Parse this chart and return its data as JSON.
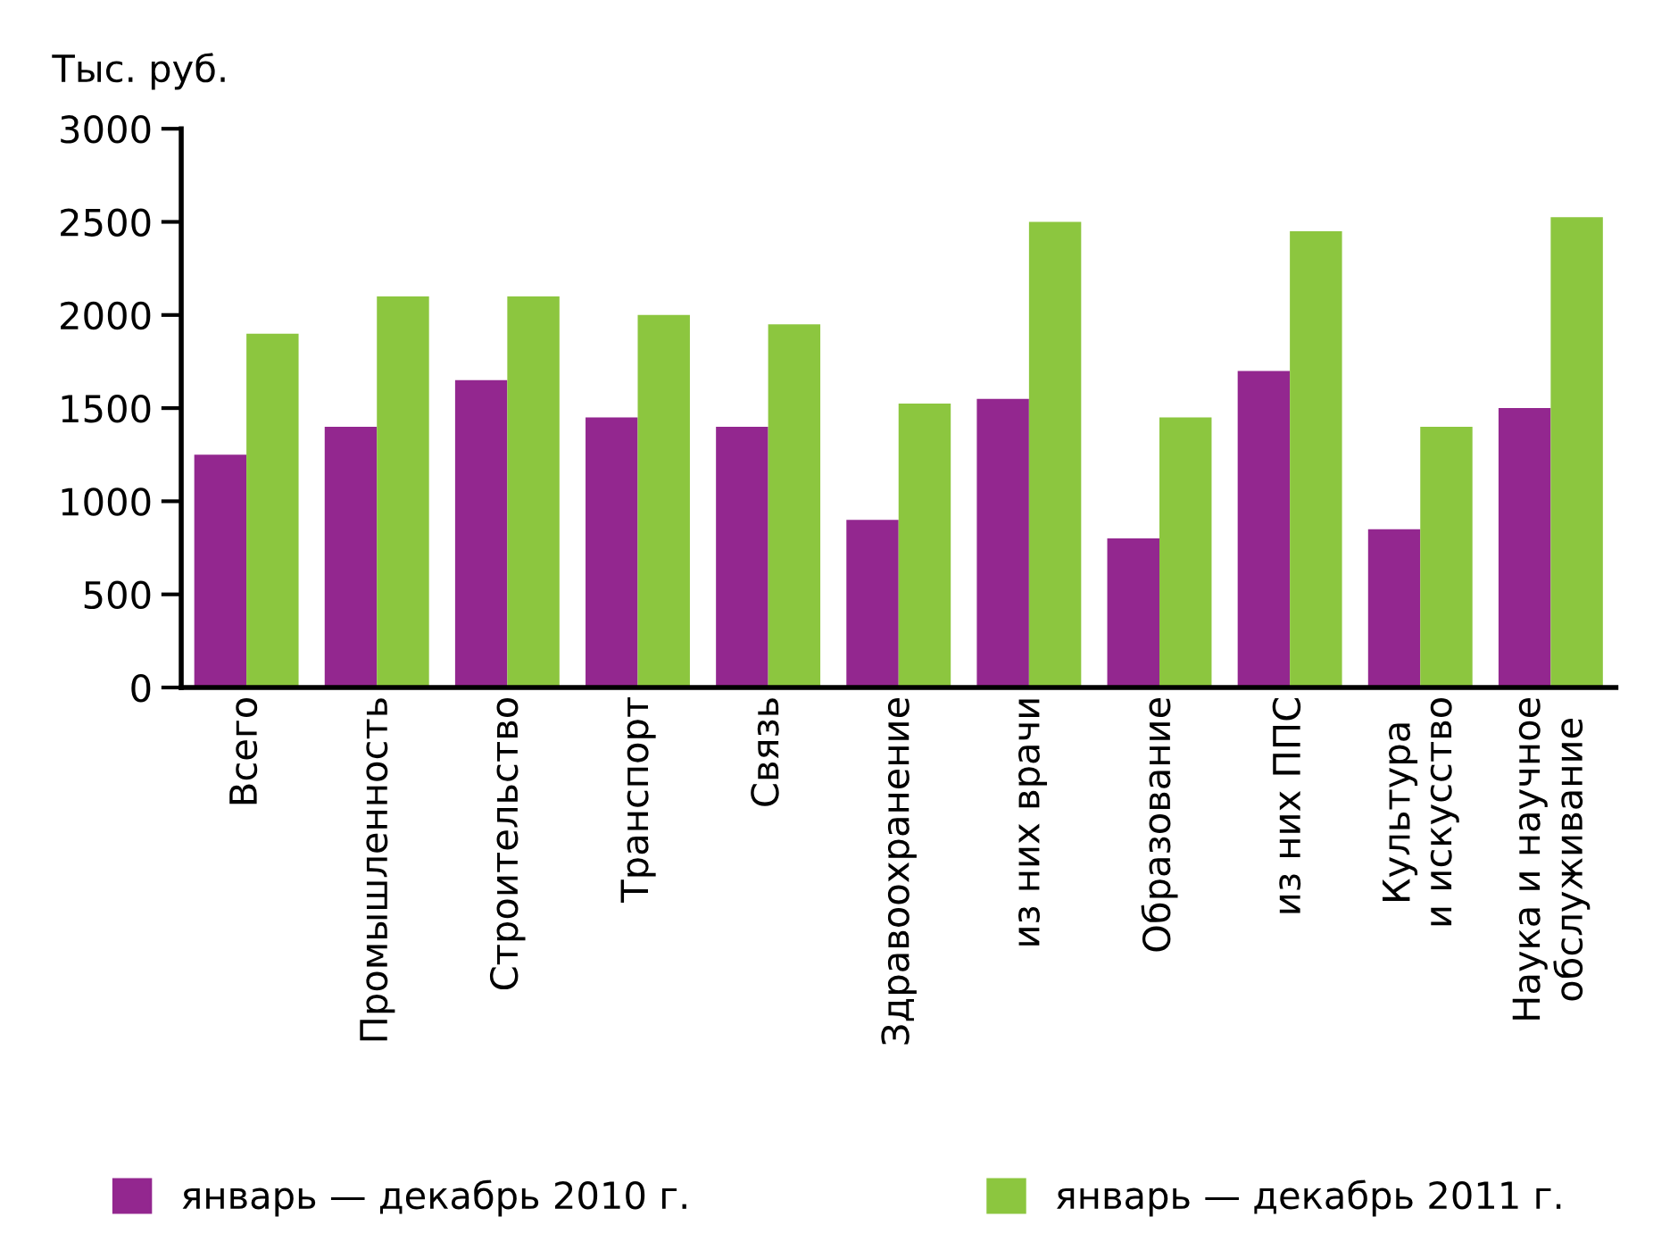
{
  "chart_data": {
    "type": "bar",
    "ylabel": "Тыс. руб.",
    "categories": [
      "Всего",
      "Промышленность",
      "Строительство",
      "Транспорт",
      "Связь",
      "Здравоохранение",
      "из них врачи",
      "Образование",
      "из них ППС",
      "Культура\nи искусство",
      "Наука и научное\nобслуживание"
    ],
    "series": [
      {
        "name": "январь — декабрь 2010 г.",
        "color": "#93278f",
        "values": [
          1250,
          1400,
          1650,
          1450,
          1400,
          900,
          1550,
          800,
          1700,
          850,
          1500
        ]
      },
      {
        "name": "январь — декабрь 2011 г.",
        "color": "#8cc63f",
        "values": [
          1900,
          2100,
          2100,
          2000,
          1950,
          1525,
          2500,
          1450,
          2450,
          1400,
          2525
        ]
      }
    ],
    "ylim": [
      0,
      3000
    ],
    "yticks": [
      0,
      500,
      1000,
      1500,
      2000,
      2500,
      3000
    ],
    "grid": false,
    "legend": "bottom"
  }
}
